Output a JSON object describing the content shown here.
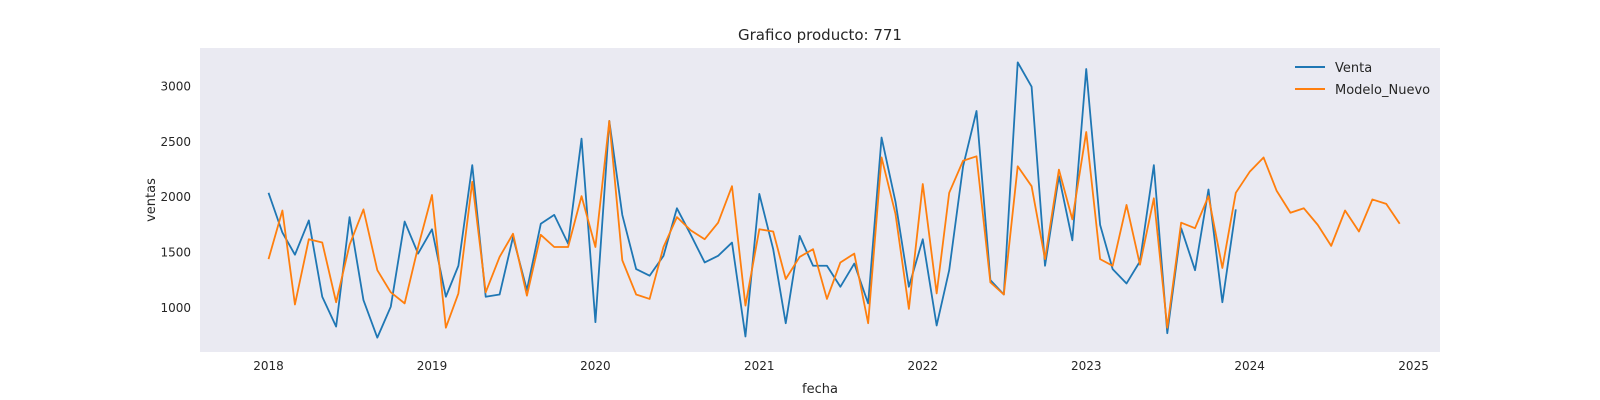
{
  "chart_data": {
    "type": "line",
    "title": "Grafico producto: 771",
    "xlabel": "fecha",
    "ylabel": "ventas",
    "x_axis": "dates",
    "xlim": [
      "2017-08-01",
      "2025-03-01"
    ],
    "ylim": [
      600,
      3350
    ],
    "x_ticks": [
      "2018-01-01",
      "2019-01-01",
      "2020-01-01",
      "2021-01-01",
      "2022-01-01",
      "2023-01-01",
      "2024-01-01",
      "2025-01-01"
    ],
    "x_tick_labels": [
      "2018",
      "2019",
      "2020",
      "2021",
      "2022",
      "2023",
      "2024",
      "2025"
    ],
    "y_ticks": [
      1000,
      1500,
      2000,
      2500,
      3000
    ],
    "y_tick_labels": [
      "1000",
      "1500",
      "2000",
      "2500",
      "3000"
    ],
    "grid": false,
    "legend_position": "top-right",
    "background_color": "#eaeaf2",
    "series": [
      {
        "name": "Venta",
        "color": "#1f77b4",
        "x": [
          "2018-01",
          "2018-02",
          "2018-03",
          "2018-04",
          "2018-05",
          "2018-06",
          "2018-07",
          "2018-08",
          "2018-09",
          "2018-10",
          "2018-11",
          "2018-12",
          "2019-01",
          "2019-02",
          "2019-03",
          "2019-04",
          "2019-05",
          "2019-06",
          "2019-07",
          "2019-08",
          "2019-09",
          "2019-10",
          "2019-11",
          "2019-12",
          "2020-01",
          "2020-02",
          "2020-03",
          "2020-04",
          "2020-05",
          "2020-06",
          "2020-07",
          "2020-08",
          "2020-09",
          "2020-10",
          "2020-11",
          "2020-12",
          "2021-01",
          "2021-02",
          "2021-03",
          "2021-04",
          "2021-05",
          "2021-06",
          "2021-07",
          "2021-08",
          "2021-09",
          "2021-10",
          "2021-11",
          "2021-12",
          "2022-01",
          "2022-02",
          "2022-03",
          "2022-04",
          "2022-05",
          "2022-06",
          "2022-07",
          "2022-08",
          "2022-09",
          "2022-10",
          "2022-11",
          "2022-12",
          "2023-01",
          "2023-02",
          "2023-03",
          "2023-04",
          "2023-05",
          "2023-06",
          "2023-07",
          "2023-08",
          "2023-09",
          "2023-10",
          "2023-11",
          "2023-12"
        ],
        "values": [
          2040,
          1680,
          1480,
          1790,
          1100,
          830,
          1820,
          1070,
          730,
          1010,
          1780,
          1490,
          1710,
          1100,
          1380,
          2290,
          1100,
          1120,
          1640,
          1160,
          1760,
          1840,
          1580,
          2530,
          870,
          2690,
          1840,
          1350,
          1290,
          1470,
          1900,
          1660,
          1410,
          1470,
          1590,
          740,
          2030,
          1530,
          860,
          1650,
          1380,
          1380,
          1190,
          1400,
          1040,
          2540,
          1960,
          1190,
          1620,
          840,
          1340,
          2280,
          2780,
          1250,
          1120,
          3220,
          3000,
          1380,
          2190,
          1610,
          3160,
          1750,
          1350,
          1220,
          1420,
          2290,
          770,
          1720,
          1340,
          2070,
          1050,
          1890
        ]
      },
      {
        "name": "Modelo_Nuevo",
        "color": "#ff7f0e",
        "x": [
          "2018-01",
          "2018-02",
          "2018-03",
          "2018-04",
          "2018-05",
          "2018-06",
          "2018-07",
          "2018-08",
          "2018-09",
          "2018-10",
          "2018-11",
          "2018-12",
          "2019-01",
          "2019-02",
          "2019-03",
          "2019-04",
          "2019-05",
          "2019-06",
          "2019-07",
          "2019-08",
          "2019-09",
          "2019-10",
          "2019-11",
          "2019-12",
          "2020-01",
          "2020-02",
          "2020-03",
          "2020-04",
          "2020-05",
          "2020-06",
          "2020-07",
          "2020-08",
          "2020-09",
          "2020-10",
          "2020-11",
          "2020-12",
          "2021-01",
          "2021-02",
          "2021-03",
          "2021-04",
          "2021-05",
          "2021-06",
          "2021-07",
          "2021-08",
          "2021-09",
          "2021-10",
          "2021-11",
          "2021-12",
          "2022-01",
          "2022-02",
          "2022-03",
          "2022-04",
          "2022-05",
          "2022-06",
          "2022-07",
          "2022-08",
          "2022-09",
          "2022-10",
          "2022-11",
          "2022-12",
          "2023-01",
          "2023-02",
          "2023-03",
          "2023-04",
          "2023-05",
          "2023-06",
          "2023-07",
          "2023-08",
          "2023-09",
          "2023-10",
          "2023-11",
          "2023-12",
          "2024-01",
          "2024-02",
          "2024-03",
          "2024-04",
          "2024-05",
          "2024-06",
          "2024-07",
          "2024-08",
          "2024-09",
          "2024-10",
          "2024-11",
          "2024-12"
        ],
        "values": [
          1440,
          1880,
          1030,
          1620,
          1590,
          1050,
          1570,
          1890,
          1340,
          1140,
          1040,
          1550,
          2020,
          820,
          1130,
          2140,
          1140,
          1460,
          1670,
          1110,
          1660,
          1550,
          1550,
          2010,
          1550,
          2690,
          1430,
          1120,
          1080,
          1550,
          1820,
          1700,
          1620,
          1770,
          2100,
          1020,
          1710,
          1690,
          1260,
          1460,
          1530,
          1080,
          1410,
          1490,
          860,
          2360,
          1850,
          990,
          2120,
          1130,
          2040,
          2330,
          2370,
          1230,
          1120,
          2280,
          2100,
          1440,
          2250,
          1800,
          2590,
          1440,
          1380,
          1930,
          1390,
          1990,
          820,
          1770,
          1720,
          2010,
          1360,
          2040,
          2230,
          2360,
          2060,
          1860,
          1900,
          1750,
          1560,
          1880,
          1690,
          1980,
          1940,
          1760
        ]
      }
    ]
  }
}
